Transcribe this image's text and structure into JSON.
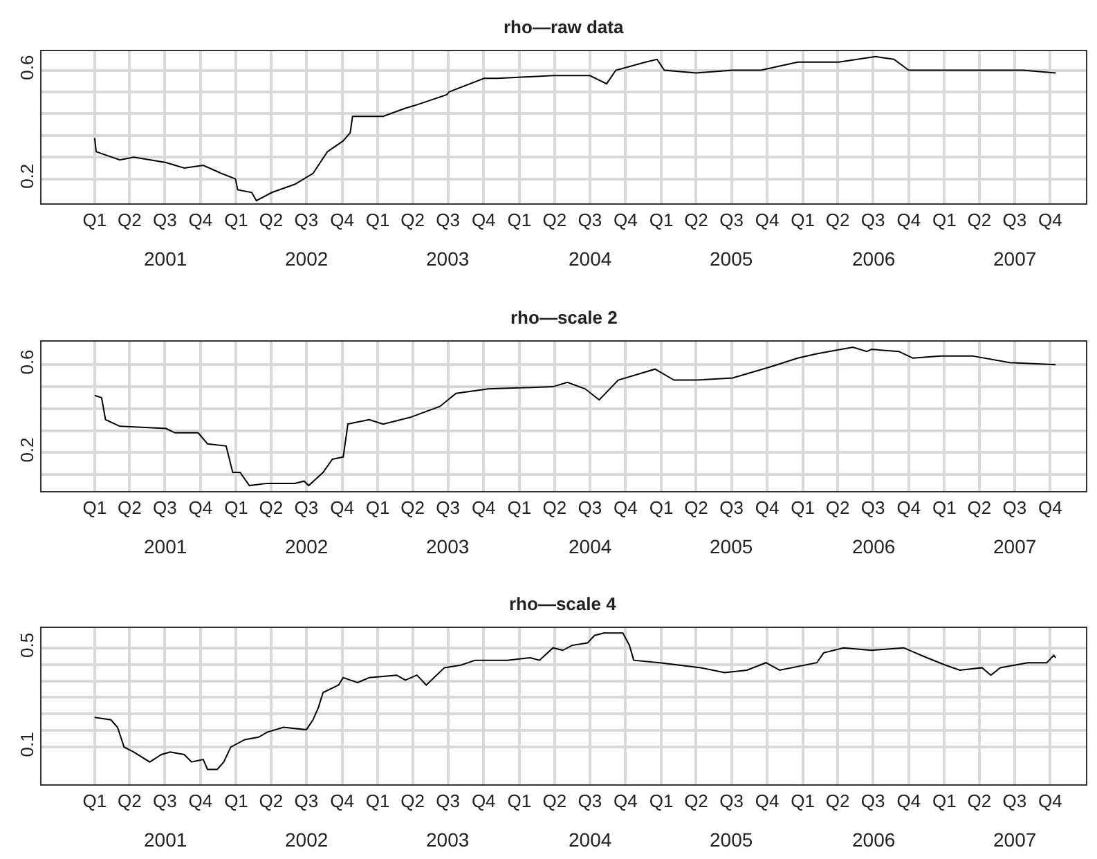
{
  "chart_data": [
    {
      "type": "line",
      "title": "rho—raw data",
      "color": "#000000",
      "grid": true,
      "line_style": "solid",
      "marker": "none",
      "x": [
        "2001-01-01",
        "2001-01-05",
        "2001-03-07",
        "2001-04-12",
        "2001-07-04",
        "2001-08-20",
        "2001-10-08",
        "2001-11-24",
        "2001-12-30",
        "2002-01-05",
        "2002-02-10",
        "2002-02-22",
        "2002-04-03",
        "2002-06-01",
        "2002-07-18",
        "2002-08-24",
        "2002-10-04",
        "2002-10-22",
        "2002-10-28",
        "2003-01-15",
        "2003-03-13",
        "2003-04-06",
        "2003-06-28",
        "2003-07-04",
        "2003-10-02",
        "2003-11-06",
        "2004-03-28",
        "2004-05-03",
        "2004-07-01",
        "2004-08-13",
        "2004-09-06",
        "2004-11-22",
        "2004-12-21",
        "2005-01-09",
        "2005-04-01",
        "2005-07-04",
        "2005-09-15",
        "2005-12-19",
        "2006-04-04",
        "2006-07-08",
        "2006-08-24",
        "2006-10-01",
        "2007-01-28",
        "2007-05-25",
        "2007-07-23",
        "2007-10-15"
      ],
      "values": [
        0.35,
        0.3,
        0.27,
        0.28,
        0.26,
        0.24,
        0.25,
        0.22,
        0.2,
        0.16,
        0.15,
        0.12,
        0.15,
        0.18,
        0.22,
        0.3,
        0.34,
        0.37,
        0.43,
        0.43,
        0.46,
        0.47,
        0.51,
        0.52,
        0.57,
        0.57,
        0.58,
        0.58,
        0.58,
        0.55,
        0.6,
        0.63,
        0.64,
        0.6,
        0.59,
        0.6,
        0.6,
        0.63,
        0.63,
        0.65,
        0.64,
        0.6,
        0.6,
        0.6,
        0.6,
        0.59
      ],
      "xlim": [
        "2000-08-17",
        "2008-01-01"
      ],
      "ylim": [
        0.11,
        0.67
      ],
      "yticks": [
        0.2,
        {
          "value": 0.28,
          "label": null
        },
        {
          "value": 0.36,
          "label": null
        },
        {
          "value": 0.44,
          "label": null
        },
        {
          "value": 0.52,
          "label": null
        },
        0.6
      ],
      "xticks": [
        {
          "value": "2001-01-01",
          "label": "Q1"
        },
        {
          "value": "2001-04-01",
          "label": "Q2"
        },
        {
          "value": "2001-07-01",
          "label": "Q3"
        },
        {
          "value": "2001-10-01",
          "label": "Q4"
        },
        {
          "value": "2002-01-01",
          "label": "Q1"
        },
        {
          "value": "2002-04-01",
          "label": "Q2"
        },
        {
          "value": "2002-07-01",
          "label": "Q3"
        },
        {
          "value": "2002-10-01",
          "label": "Q4"
        },
        {
          "value": "2003-01-01",
          "label": "Q1"
        },
        {
          "value": "2003-04-01",
          "label": "Q2"
        },
        {
          "value": "2003-07-01",
          "label": "Q3"
        },
        {
          "value": "2003-10-01",
          "label": "Q4"
        },
        {
          "value": "2004-01-01",
          "label": "Q1"
        },
        {
          "value": "2004-04-01",
          "label": "Q2"
        },
        {
          "value": "2004-07-01",
          "label": "Q3"
        },
        {
          "value": "2004-10-01",
          "label": "Q4"
        },
        {
          "value": "2005-01-01",
          "label": "Q1"
        },
        {
          "value": "2005-04-01",
          "label": "Q2"
        },
        {
          "value": "2005-07-01",
          "label": "Q3"
        },
        {
          "value": "2005-10-01",
          "label": "Q4"
        },
        {
          "value": "2006-01-01",
          "label": "Q1"
        },
        {
          "value": "2006-04-01",
          "label": "Q2"
        },
        {
          "value": "2006-07-01",
          "label": "Q3"
        },
        {
          "value": "2006-10-01",
          "label": "Q4"
        },
        {
          "value": "2007-01-01",
          "label": "Q1"
        },
        {
          "value": "2007-04-01",
          "label": "Q2"
        },
        {
          "value": "2007-07-01",
          "label": "Q3"
        },
        {
          "value": "2007-10-01",
          "label": "Q4"
        }
      ],
      "annotations": [
        "2001",
        "2002",
        "2003",
        "2004",
        "2005",
        "2006",
        "2007"
      ]
    },
    {
      "type": "line",
      "title": "rho—scale 2",
      "color": "#000000",
      "grid": true,
      "line_style": "solid",
      "marker": "none",
      "x": [
        "2001-01-01",
        "2001-01-19",
        "2001-01-29",
        "2001-03-07",
        "2001-07-04",
        "2001-07-27",
        "2001-09-25",
        "2001-10-19",
        "2001-12-06",
        "2001-12-23",
        "2002-01-11",
        "2002-02-04",
        "2002-03-22",
        "2002-06-01",
        "2002-06-25",
        "2002-07-07",
        "2002-08-13",
        "2002-09-06",
        "2002-10-04",
        "2002-10-16",
        "2002-12-10",
        "2003-01-15",
        "2003-03-25",
        "2003-06-10",
        "2003-07-22",
        "2003-10-13",
        "2004-03-28",
        "2004-05-04",
        "2004-06-19",
        "2004-07-25",
        "2004-09-12",
        "2004-12-16",
        "2005-02-03",
        "2005-04-01",
        "2005-07-04",
        "2005-10-09",
        "2005-12-19",
        "2006-02-06",
        "2006-05-10",
        "2006-06-15",
        "2006-06-27",
        "2006-09-06",
        "2006-10-12",
        "2006-12-22",
        "2007-03-14",
        "2007-06-18",
        "2007-10-15"
      ],
      "values": [
        0.46,
        0.45,
        0.35,
        0.32,
        0.31,
        0.29,
        0.29,
        0.24,
        0.23,
        0.11,
        0.11,
        0.05,
        0.06,
        0.06,
        0.07,
        0.05,
        0.11,
        0.17,
        0.18,
        0.33,
        0.35,
        0.33,
        0.36,
        0.41,
        0.47,
        0.49,
        0.5,
        0.52,
        0.49,
        0.44,
        0.53,
        0.58,
        0.53,
        0.53,
        0.54,
        0.59,
        0.63,
        0.65,
        0.68,
        0.66,
        0.67,
        0.66,
        0.63,
        0.64,
        0.64,
        0.61,
        0.6
      ],
      "xlim": [
        "2000-08-17",
        "2008-01-01"
      ],
      "ylim": [
        0.025,
        0.705
      ],
      "yticks": [
        {
          "value": 0.1,
          "label": null
        },
        0.2,
        {
          "value": 0.3,
          "label": null
        },
        {
          "value": 0.4,
          "label": null
        },
        {
          "value": 0.5,
          "label": null
        },
        0.6
      ],
      "xticks": [
        {
          "value": "2001-01-01",
          "label": "Q1"
        },
        {
          "value": "2001-04-01",
          "label": "Q2"
        },
        {
          "value": "2001-07-01",
          "label": "Q3"
        },
        {
          "value": "2001-10-01",
          "label": "Q4"
        },
        {
          "value": "2002-01-01",
          "label": "Q1"
        },
        {
          "value": "2002-04-01",
          "label": "Q2"
        },
        {
          "value": "2002-07-01",
          "label": "Q3"
        },
        {
          "value": "2002-10-01",
          "label": "Q4"
        },
        {
          "value": "2003-01-01",
          "label": "Q1"
        },
        {
          "value": "2003-04-01",
          "label": "Q2"
        },
        {
          "value": "2003-07-01",
          "label": "Q3"
        },
        {
          "value": "2003-10-01",
          "label": "Q4"
        },
        {
          "value": "2004-01-01",
          "label": "Q1"
        },
        {
          "value": "2004-04-01",
          "label": "Q2"
        },
        {
          "value": "2004-07-01",
          "label": "Q3"
        },
        {
          "value": "2004-10-01",
          "label": "Q4"
        },
        {
          "value": "2005-01-01",
          "label": "Q1"
        },
        {
          "value": "2005-04-01",
          "label": "Q2"
        },
        {
          "value": "2005-07-01",
          "label": "Q3"
        },
        {
          "value": "2005-10-01",
          "label": "Q4"
        },
        {
          "value": "2006-01-01",
          "label": "Q1"
        },
        {
          "value": "2006-04-01",
          "label": "Q2"
        },
        {
          "value": "2006-07-01",
          "label": "Q3"
        },
        {
          "value": "2006-10-01",
          "label": "Q4"
        },
        {
          "value": "2007-01-01",
          "label": "Q1"
        },
        {
          "value": "2007-04-01",
          "label": "Q2"
        },
        {
          "value": "2007-07-01",
          "label": "Q3"
        },
        {
          "value": "2007-10-01",
          "label": "Q4"
        }
      ],
      "annotations": [
        "2001",
        "2002",
        "2003",
        "2004",
        "2005",
        "2006",
        "2007"
      ]
    },
    {
      "type": "line",
      "title": "rho—scale 4",
      "color": "#000000",
      "grid": true,
      "line_style": "solid",
      "marker": "none",
      "x": [
        "2001-01-01",
        "2001-02-12",
        "2001-03-01",
        "2001-03-18",
        "2001-04-12",
        "2001-05-23",
        "2001-06-22",
        "2001-07-15",
        "2001-08-20",
        "2001-09-08",
        "2001-10-08",
        "2001-10-19",
        "2001-11-13",
        "2001-11-30",
        "2001-12-18",
        "2002-01-23",
        "2002-02-28",
        "2002-03-22",
        "2002-05-03",
        "2002-07-01",
        "2002-07-18",
        "2002-08-01",
        "2002-08-13",
        "2002-09-22",
        "2002-10-04",
        "2002-11-10",
        "2002-12-10",
        "2003-02-19",
        "2003-03-13",
        "2003-04-12",
        "2003-05-06",
        "2003-06-22",
        "2003-08-03",
        "2003-09-09",
        "2003-12-01",
        "2004-01-29",
        "2004-02-22",
        "2004-03-28",
        "2004-04-22",
        "2004-05-16",
        "2004-06-25",
        "2004-07-13",
        "2004-08-06",
        "2004-09-24",
        "2004-10-11",
        "2004-10-22",
        "2004-12-28",
        "2005-04-13",
        "2005-06-13",
        "2005-08-10",
        "2005-09-28",
        "2005-11-02",
        "2006-02-06",
        "2006-02-24",
        "2006-04-16",
        "2006-06-27",
        "2006-09-18",
        "2006-11-17",
        "2007-01-04",
        "2007-02-10",
        "2007-04-08",
        "2007-05-01",
        "2007-05-25",
        "2007-08-04",
        "2007-09-22",
        "2007-10-10",
        "2007-10-15"
      ],
      "values": [
        0.22,
        0.21,
        0.18,
        0.1,
        0.08,
        0.04,
        0.07,
        0.08,
        0.07,
        0.04,
        0.05,
        0.01,
        0.01,
        0.04,
        0.1,
        0.13,
        0.14,
        0.16,
        0.18,
        0.17,
        0.21,
        0.26,
        0.32,
        0.35,
        0.38,
        0.36,
        0.38,
        0.39,
        0.37,
        0.39,
        0.35,
        0.42,
        0.43,
        0.45,
        0.45,
        0.46,
        0.45,
        0.5,
        0.49,
        0.51,
        0.52,
        0.55,
        0.56,
        0.56,
        0.51,
        0.45,
        0.44,
        0.42,
        0.4,
        0.41,
        0.44,
        0.41,
        0.44,
        0.48,
        0.5,
        0.49,
        0.5,
        0.46,
        0.43,
        0.41,
        0.42,
        0.39,
        0.42,
        0.44,
        0.44,
        0.47,
        0.46
      ],
      "xlim": [
        "2000-08-17",
        "2008-01-01"
      ],
      "ylim": [
        -0.05,
        0.58
      ],
      "yticks": [
        0.1,
        {
          "value": 0.1667,
          "label": null
        },
        {
          "value": 0.2333,
          "label": null
        },
        {
          "value": 0.3,
          "label": null
        },
        {
          "value": 0.3667,
          "label": null
        },
        {
          "value": 0.4333,
          "label": null
        },
        0.5
      ],
      "xticks": [
        {
          "value": "2001-01-01",
          "label": "Q1"
        },
        {
          "value": "2001-04-01",
          "label": "Q2"
        },
        {
          "value": "2001-07-01",
          "label": "Q3"
        },
        {
          "value": "2001-10-01",
          "label": "Q4"
        },
        {
          "value": "2002-01-01",
          "label": "Q1"
        },
        {
          "value": "2002-04-01",
          "label": "Q2"
        },
        {
          "value": "2002-07-01",
          "label": "Q3"
        },
        {
          "value": "2002-10-01",
          "label": "Q4"
        },
        {
          "value": "2003-01-01",
          "label": "Q1"
        },
        {
          "value": "2003-04-01",
          "label": "Q2"
        },
        {
          "value": "2003-07-01",
          "label": "Q3"
        },
        {
          "value": "2003-10-01",
          "label": "Q4"
        },
        {
          "value": "2004-01-01",
          "label": "Q1"
        },
        {
          "value": "2004-04-01",
          "label": "Q2"
        },
        {
          "value": "2004-07-01",
          "label": "Q3"
        },
        {
          "value": "2004-10-01",
          "label": "Q4"
        },
        {
          "value": "2005-01-01",
          "label": "Q1"
        },
        {
          "value": "2005-04-01",
          "label": "Q2"
        },
        {
          "value": "2005-07-01",
          "label": "Q3"
        },
        {
          "value": "2005-10-01",
          "label": "Q4"
        },
        {
          "value": "2006-01-01",
          "label": "Q1"
        },
        {
          "value": "2006-04-01",
          "label": "Q2"
        },
        {
          "value": "2006-07-01",
          "label": "Q3"
        },
        {
          "value": "2006-10-01",
          "label": "Q4"
        },
        {
          "value": "2007-01-01",
          "label": "Q1"
        },
        {
          "value": "2007-04-01",
          "label": "Q2"
        },
        {
          "value": "2007-07-01",
          "label": "Q3"
        },
        {
          "value": "2007-10-01",
          "label": "Q4"
        }
      ],
      "annotations": [
        "2001",
        "2002",
        "2003",
        "2004",
        "2005",
        "2006",
        "2007"
      ]
    }
  ]
}
